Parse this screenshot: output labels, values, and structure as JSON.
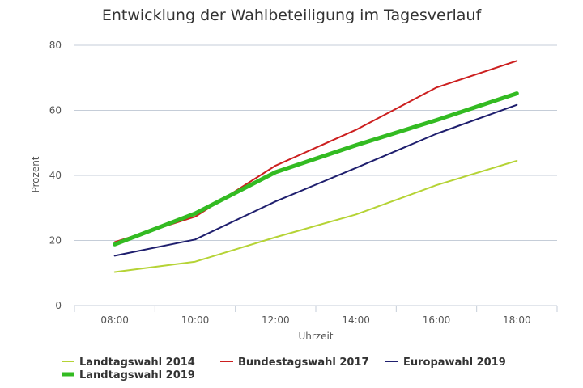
{
  "chart_data": {
    "type": "line",
    "title": "Entwicklung der Wahlbeteiligung im Tagesverlauf",
    "xlabel": "Uhrzeit",
    "ylabel": "Prozent",
    "categories": [
      "08:00",
      "10:00",
      "12:00",
      "14:00",
      "16:00",
      "18:00"
    ],
    "ylim": [
      0,
      80
    ],
    "yticks": [
      0,
      20,
      40,
      60,
      80
    ],
    "grid": true,
    "legend_position": "bottom",
    "series": [
      {
        "name": "Landtagswahl 2014",
        "color": "#b5d335",
        "emphasis": false,
        "values": [
          10.3,
          13.5,
          21.0,
          28.0,
          37.0,
          44.5
        ]
      },
      {
        "name": "Bundestagswahl 2017",
        "color": "#cc1f1f",
        "emphasis": false,
        "values": [
          19.5,
          27.3,
          43.0,
          54.0,
          67.0,
          75.2
        ]
      },
      {
        "name": "Europawahl 2019",
        "color": "#1f1f6e",
        "emphasis": false,
        "values": [
          15.3,
          20.3,
          32.0,
          42.3,
          52.8,
          61.7
        ]
      },
      {
        "name": "Landtagswahl 2019",
        "color": "#33bb22",
        "emphasis": true,
        "values": [
          18.8,
          28.3,
          41.0,
          49.3,
          57.0,
          65.2
        ]
      }
    ]
  }
}
